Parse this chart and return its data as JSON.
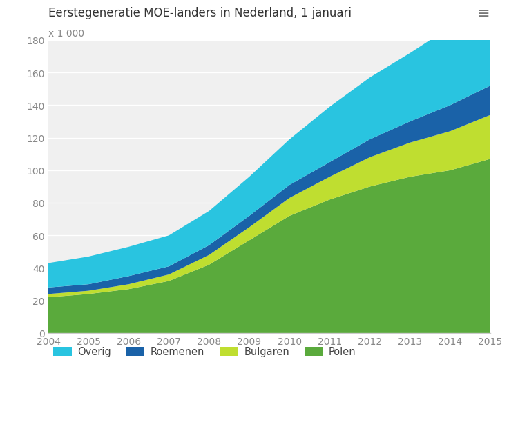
{
  "title": "Eerstegeneratie MOE-landers in Nederland, 1 januari",
  "ylabel": "x 1 000",
  "years": [
    2004,
    2005,
    2006,
    2007,
    2008,
    2009,
    2010,
    2011,
    2012,
    2013,
    2014,
    2015
  ],
  "Polen": [
    22,
    24,
    27,
    32,
    42,
    57,
    72,
    82,
    90,
    96,
    100,
    107
  ],
  "Bulgaren": [
    2,
    2,
    3,
    4,
    6,
    8,
    11,
    14,
    18,
    21,
    24,
    27
  ],
  "Roemenen": [
    4,
    4,
    5,
    5,
    6,
    7,
    8,
    9,
    11,
    13,
    16,
    18
  ],
  "Overig": [
    15,
    17,
    18,
    19,
    21,
    24,
    28,
    34,
    38,
    42,
    48,
    50
  ],
  "colors": {
    "Polen": "#5aaa3c",
    "Bulgaren": "#bfde30",
    "Roemenen": "#1a62a8",
    "Overig": "#29c4e0"
  },
  "ylim": [
    0,
    180
  ],
  "yticks": [
    0,
    20,
    40,
    60,
    80,
    100,
    120,
    140,
    160,
    180
  ],
  "background_color": "#ffffff",
  "plot_bg_color": "#f0f0f0",
  "legend_labels": [
    "Overig",
    "Roemenen",
    "Bulgaren",
    "Polen"
  ],
  "title_fontsize": 12,
  "tick_fontsize": 10,
  "grid_color": "#ffffff",
  "tick_color": "#888888",
  "title_color": "#333333",
  "footer_bg": "#ebebeb"
}
